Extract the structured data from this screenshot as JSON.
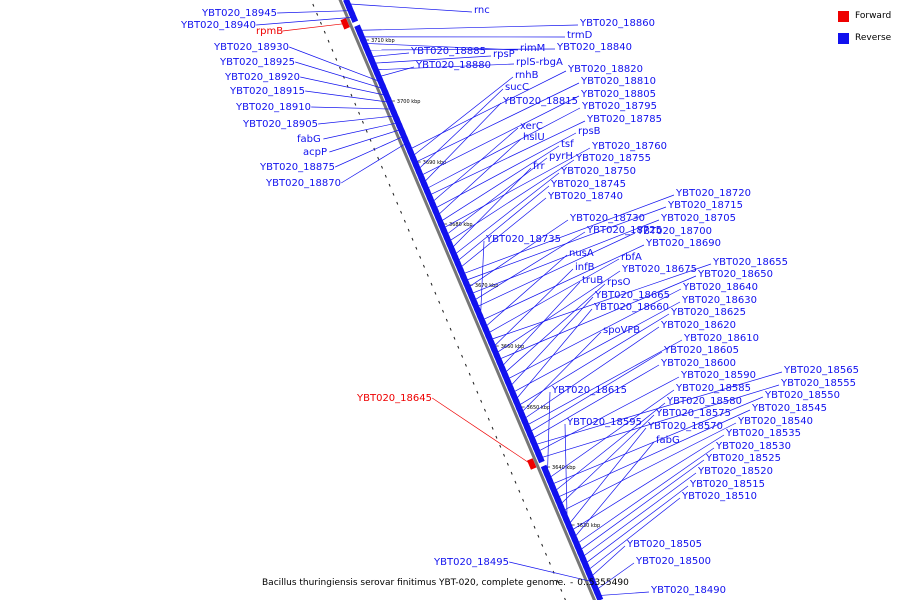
{
  "legend": {
    "forward_label": "Forward",
    "reverse_label": "Reverse",
    "forward_color": "#ee0000",
    "reverse_color": "#1111ee"
  },
  "caption": {
    "title": "Bacillus thuringiensis serovar finitimus YBT-020, complete genome.",
    "separator": "-",
    "value": "0..5355490"
  },
  "colors": {
    "forward": "#ee0000",
    "reverse": "#1111ee",
    "backbone": "#777777",
    "ticks": "#000000"
  },
  "scale_ticks": [
    "3710 kbp",
    "3700 kbp",
    "3690 kbp",
    "3680 kbp",
    "3670 kbp",
    "3660 kbp",
    "3650 kbp",
    "3640 kbp",
    "3630 kbp"
  ],
  "genes": [
    {
      "name": "rnc",
      "strand": "reverse",
      "side": "right"
    },
    {
      "name": "YBT020_18945",
      "strand": "reverse",
      "side": "left"
    },
    {
      "name": "YBT020_18940",
      "strand": "reverse",
      "side": "left"
    },
    {
      "name": "rpmB",
      "strand": "forward",
      "side": "left"
    },
    {
      "name": "YBT020_18860",
      "strand": "reverse",
      "side": "right"
    },
    {
      "name": "trmD",
      "strand": "reverse",
      "side": "right"
    },
    {
      "name": "rimM",
      "strand": "reverse",
      "side": "right"
    },
    {
      "name": "YBT020_18840",
      "strand": "reverse",
      "side": "right"
    },
    {
      "name": "YBT020_18885",
      "strand": "reverse",
      "side": "right"
    },
    {
      "name": "rpsP",
      "strand": "reverse",
      "side": "right"
    },
    {
      "name": "rplS-rbgA",
      "strand": "reverse",
      "side": "right"
    },
    {
      "name": "YBT020_18880",
      "strand": "reverse",
      "side": "right"
    },
    {
      "name": "YBT020_18930",
      "strand": "reverse",
      "side": "left"
    },
    {
      "name": "YBT020_18925",
      "strand": "reverse",
      "side": "left"
    },
    {
      "name": "YBT020_18920",
      "strand": "reverse",
      "side": "left"
    },
    {
      "name": "YBT020_18915",
      "strand": "reverse",
      "side": "left"
    },
    {
      "name": "YBT020_18910",
      "strand": "reverse",
      "side": "left"
    },
    {
      "name": "YBT020_18905",
      "strand": "reverse",
      "side": "left"
    },
    {
      "name": "fabG",
      "strand": "reverse",
      "side": "left"
    },
    {
      "name": "acpP",
      "strand": "reverse",
      "side": "left"
    },
    {
      "name": "YBT020_18875",
      "strand": "reverse",
      "side": "left"
    },
    {
      "name": "YBT020_18870",
      "strand": "reverse",
      "side": "left"
    },
    {
      "name": "YBT020_18820",
      "strand": "reverse",
      "side": "right"
    },
    {
      "name": "rnhB",
      "strand": "reverse",
      "side": "right"
    },
    {
      "name": "YBT020_18810",
      "strand": "reverse",
      "side": "right"
    },
    {
      "name": "sucC",
      "strand": "reverse",
      "side": "right"
    },
    {
      "name": "YBT020_18805",
      "strand": "reverse",
      "side": "right"
    },
    {
      "name": "YBT020_18815",
      "strand": "reverse",
      "side": "right"
    },
    {
      "name": "YBT020_18795",
      "strand": "reverse",
      "side": "right"
    },
    {
      "name": "YBT020_18785",
      "strand": "reverse",
      "side": "right"
    },
    {
      "name": "xerC",
      "strand": "reverse",
      "side": "right"
    },
    {
      "name": "rpsB",
      "strand": "reverse",
      "side": "right"
    },
    {
      "name": "hslU",
      "strand": "reverse",
      "side": "right"
    },
    {
      "name": "tsf",
      "strand": "reverse",
      "side": "right"
    },
    {
      "name": "YBT020_18760",
      "strand": "reverse",
      "side": "right"
    },
    {
      "name": "pyrH",
      "strand": "reverse",
      "side": "right"
    },
    {
      "name": "YBT020_18755",
      "strand": "reverse",
      "side": "right"
    },
    {
      "name": "frr",
      "strand": "reverse",
      "side": "right"
    },
    {
      "name": "YBT020_18750",
      "strand": "reverse",
      "side": "right"
    },
    {
      "name": "YBT020_18745",
      "strand": "reverse",
      "side": "right"
    },
    {
      "name": "YBT020_18740",
      "strand": "reverse",
      "side": "right"
    },
    {
      "name": "YBT020_18720",
      "strand": "reverse",
      "side": "right"
    },
    {
      "name": "YBT020_18715",
      "strand": "reverse",
      "side": "right"
    },
    {
      "name": "YBT020_18730",
      "strand": "reverse",
      "side": "right"
    },
    {
      "name": "YBT020_18705",
      "strand": "reverse",
      "side": "right"
    },
    {
      "name": "YBT020_18725",
      "strand": "reverse",
      "side": "right"
    },
    {
      "name": "YBT020_18700",
      "strand": "reverse",
      "side": "right"
    },
    {
      "name": "YBT020_18735",
      "strand": "reverse",
      "side": "right"
    },
    {
      "name": "YBT020_18690",
      "strand": "reverse",
      "side": "right"
    },
    {
      "name": "nusA",
      "strand": "reverse",
      "side": "right"
    },
    {
      "name": "rbfA",
      "strand": "reverse",
      "side": "right"
    },
    {
      "name": "YBT020_18655",
      "strand": "reverse",
      "side": "right"
    },
    {
      "name": "infB",
      "strand": "reverse",
      "side": "right"
    },
    {
      "name": "YBT020_18675",
      "strand": "reverse",
      "side": "right"
    },
    {
      "name": "YBT020_18650",
      "strand": "reverse",
      "side": "right"
    },
    {
      "name": "truB",
      "strand": "reverse",
      "side": "right"
    },
    {
      "name": "rpsO",
      "strand": "reverse",
      "side": "right"
    },
    {
      "name": "YBT020_18640",
      "strand": "reverse",
      "side": "right"
    },
    {
      "name": "YBT020_18665",
      "strand": "reverse",
      "side": "right"
    },
    {
      "name": "YBT020_18630",
      "strand": "reverse",
      "side": "right"
    },
    {
      "name": "YBT020_18660",
      "strand": "reverse",
      "side": "right"
    },
    {
      "name": "YBT020_18625",
      "strand": "reverse",
      "side": "right"
    },
    {
      "name": "spoVFB",
      "strand": "reverse",
      "side": "right"
    },
    {
      "name": "YBT020_18620",
      "strand": "reverse",
      "side": "right"
    },
    {
      "name": "YBT020_18610",
      "strand": "reverse",
      "side": "right"
    },
    {
      "name": "YBT020_18605",
      "strand": "reverse",
      "side": "right"
    },
    {
      "name": "YBT020_18600",
      "strand": "reverse",
      "side": "right"
    },
    {
      "name": "YBT020_18565",
      "strand": "reverse",
      "side": "right"
    },
    {
      "name": "YBT020_18590",
      "strand": "reverse",
      "side": "right"
    },
    {
      "name": "YBT020_18555",
      "strand": "reverse",
      "side": "right"
    },
    {
      "name": "YBT020_18645",
      "strand": "forward",
      "side": "left"
    },
    {
      "name": "YBT020_18615",
      "strand": "reverse",
      "side": "right"
    },
    {
      "name": "YBT020_18585",
      "strand": "reverse",
      "side": "right"
    },
    {
      "name": "YBT020_18550",
      "strand": "reverse",
      "side": "right"
    },
    {
      "name": "YBT020_18580",
      "strand": "reverse",
      "side": "right"
    },
    {
      "name": "YBT020_18545",
      "strand": "reverse",
      "side": "right"
    },
    {
      "name": "YBT020_18575",
      "strand": "reverse",
      "side": "right"
    },
    {
      "name": "YBT020_18540",
      "strand": "reverse",
      "side": "right"
    },
    {
      "name": "YBT020_18595",
      "strand": "reverse",
      "side": "right"
    },
    {
      "name": "YBT020_18570",
      "strand": "reverse",
      "side": "right"
    },
    {
      "name": "YBT020_18535",
      "strand": "reverse",
      "side": "right"
    },
    {
      "name": "fabG",
      "strand": "reverse",
      "side": "right"
    },
    {
      "name": "YBT020_18530",
      "strand": "reverse",
      "side": "right"
    },
    {
      "name": "YBT020_18525",
      "strand": "reverse",
      "side": "right"
    },
    {
      "name": "YBT020_18520",
      "strand": "reverse",
      "side": "right"
    },
    {
      "name": "YBT020_18515",
      "strand": "reverse",
      "side": "right"
    },
    {
      "name": "YBT020_18510",
      "strand": "reverse",
      "side": "right"
    },
    {
      "name": "YBT020_18505",
      "strand": "reverse",
      "side": "right"
    },
    {
      "name": "YBT020_18495",
      "strand": "reverse",
      "side": "left"
    },
    {
      "name": "YBT020_18500",
      "strand": "reverse",
      "side": "right"
    },
    {
      "name": "YBT020_18490",
      "strand": "reverse",
      "side": "right"
    }
  ]
}
